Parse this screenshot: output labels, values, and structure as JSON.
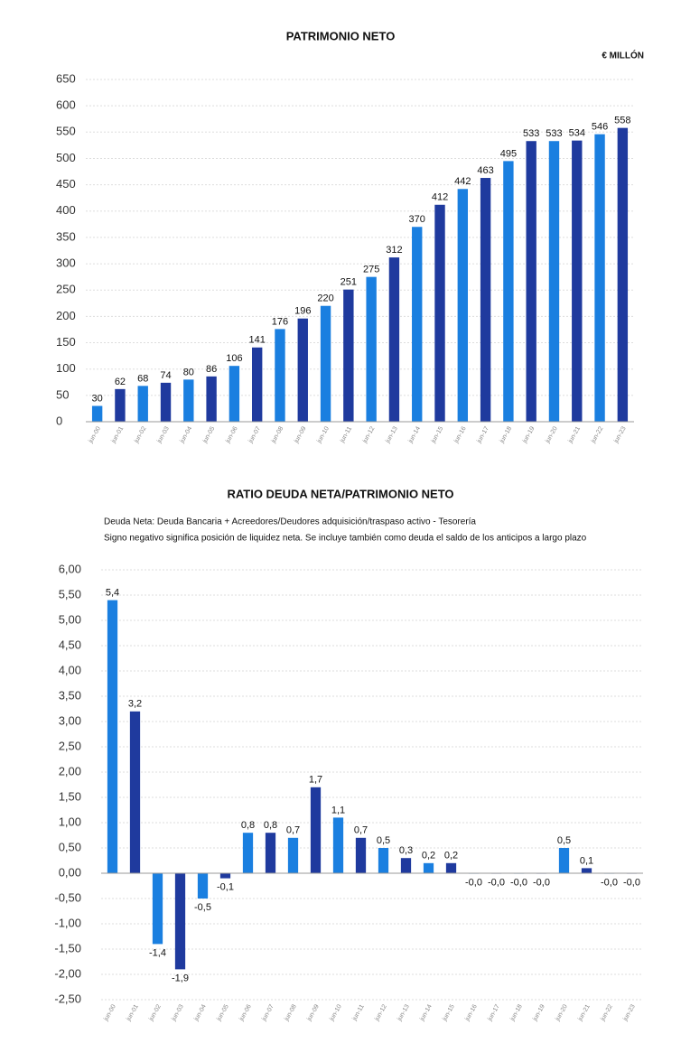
{
  "chart_data": [
    {
      "type": "bar",
      "title": "PATRIMONIO NETO",
      "unit": "€ MILLÓN",
      "categories": [
        "jun-00",
        "jun-01",
        "jun-02",
        "jun-03",
        "jun-04",
        "jun-05",
        "jun-06",
        "jun-07",
        "jun-08",
        "jun-09",
        "jun-10",
        "jun-11",
        "jun-12",
        "jun-13",
        "jun-14",
        "jun-15",
        "jun-16",
        "jun-17",
        "jun-18",
        "jun-19",
        "jun-20",
        "jun-21",
        "jun-22",
        "jun-23"
      ],
      "values": [
        30,
        62,
        68,
        74,
        80,
        86,
        106,
        141,
        176,
        196,
        220,
        251,
        275,
        312,
        370,
        412,
        442,
        463,
        495,
        533,
        533,
        534,
        546,
        558
      ],
      "colors": [
        "#1a7fe0",
        "#1f3a9e"
      ],
      "ylim": [
        0,
        650
      ],
      "yticks": [
        0,
        50,
        100,
        150,
        200,
        250,
        300,
        350,
        400,
        450,
        500,
        550,
        600,
        650
      ],
      "grid": true
    },
    {
      "type": "bar",
      "title": "RATIO DEUDA NETA/PATRIMONIO NETO",
      "notes": [
        "Deuda Neta: Deuda Bancaria + Acreedores/Deudores adquisición/traspaso activo - Tesorería",
        "Signo negativo significa posición de liquidez neta. Se incluye también como deuda el saldo de los anticipos a largo plazo"
      ],
      "categories": [
        "jun-00",
        "jun-01",
        "jun-02",
        "jun-03",
        "jun-04",
        "jun-05",
        "jun-06",
        "jun-07",
        "jun-08",
        "jun-09",
        "jun-10",
        "jun-11",
        "jun-12",
        "jun-13",
        "jun-14",
        "jun-15",
        "jun-16",
        "jun-17",
        "jun-18",
        "jun-19",
        "jun-20",
        "jun-21",
        "jun-22",
        "jun-23"
      ],
      "values": [
        5.4,
        3.2,
        -1.4,
        -1.9,
        -0.5,
        -0.1,
        0.8,
        0.8,
        0.7,
        1.7,
        1.1,
        0.7,
        0.5,
        0.3,
        0.2,
        0.2,
        -0.01,
        -0.01,
        -0.01,
        -0.01,
        0.5,
        0.1,
        -0.01,
        -0.01
      ],
      "value_labels": [
        "5,4",
        "3,2",
        "-1,4",
        "-1,9",
        "-0,5",
        "-0,1",
        "0,8",
        "0,8",
        "0,7",
        "1,7",
        "1,1",
        "0,7",
        "0,5",
        "0,3",
        "0,2",
        "0,2",
        "-0,0",
        "-0,0",
        "-0,0",
        "-0,0",
        "0,5",
        "0,1",
        "-0,0",
        "-0,0"
      ],
      "colors": [
        "#1a7fe0",
        "#1f3a9e"
      ],
      "ylim": [
        -2.5,
        6
      ],
      "yticks": [
        {
          "value": 6,
          "label": "6,00"
        },
        {
          "value": 5.5,
          "label": "5,50"
        },
        {
          "value": 5,
          "label": "5,00"
        },
        {
          "value": 4.5,
          "label": "4,50"
        },
        {
          "value": 4,
          "label": "4,00"
        },
        {
          "value": 3.5,
          "label": "3,50"
        },
        {
          "value": 3,
          "label": "3,00"
        },
        {
          "value": 2.5,
          "label": "2,50"
        },
        {
          "value": 2,
          "label": "2,00"
        },
        {
          "value": 1.5,
          "label": "1,50"
        },
        {
          "value": 1,
          "label": "1,00"
        },
        {
          "value": 0.5,
          "label": "0,50"
        },
        {
          "value": 0,
          "label": "0,00"
        },
        {
          "value": -0.5,
          "label": "-0,50"
        },
        {
          "value": -1,
          "label": "-1,00"
        },
        {
          "value": -1.5,
          "label": "-1,50"
        },
        {
          "value": -2,
          "label": "-2,00"
        },
        {
          "value": -2.5,
          "label": "-2,50"
        }
      ],
      "grid": true
    }
  ]
}
